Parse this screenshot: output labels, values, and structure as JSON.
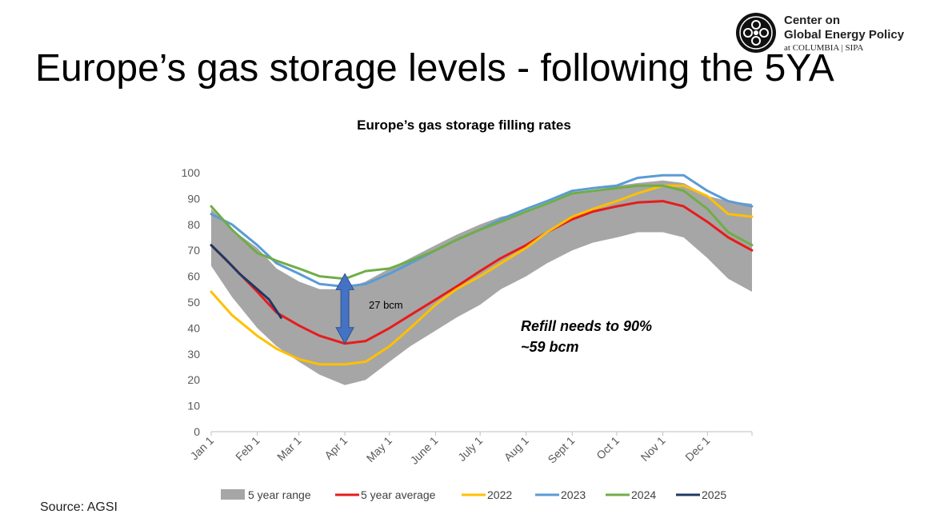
{
  "slide": {
    "title": "Europe’s gas storage levels - following the 5YA",
    "source": "Source: AGSI"
  },
  "logo": {
    "line1": "Center on",
    "line2": "Global Energy Policy",
    "line3": "at COLUMBIA | SIPA"
  },
  "colors": {
    "range": "#a6a6a6",
    "avg": "#e81b1b",
    "y2022": "#ffc000",
    "y2023": "#5b9bd5",
    "y2024": "#70ad47",
    "y2025": "#1f3864",
    "arrow": "#4472c4"
  },
  "chart_data": {
    "type": "area",
    "title": "Europe’s gas storage filling rates",
    "xlabel": "",
    "ylabel": "",
    "x_ticks": [
      "Jan 1",
      "Feb 1",
      "Mar 1",
      "Apr 1",
      "May 1",
      "June 1",
      "July 1",
      "Aug 1",
      "Sept 1",
      "Oct 1",
      "Nov 1",
      "Dec 1"
    ],
    "ylim": [
      0,
      100
    ],
    "yticks": [
      0,
      10,
      20,
      30,
      40,
      50,
      60,
      70,
      80,
      90,
      100
    ],
    "grid": false,
    "legend_position": "bottom",
    "day_of_year": [
      1,
      15,
      32,
      45,
      60,
      74,
      91,
      105,
      121,
      135,
      152,
      166,
      182,
      196,
      213,
      227,
      244,
      258,
      274,
      288,
      305,
      319,
      335,
      349,
      365
    ],
    "range_band": {
      "name": "5 year range",
      "upper": [
        86,
        78,
        71,
        63,
        58,
        55,
        55,
        58,
        63,
        67,
        72,
        76,
        80,
        83,
        85,
        88,
        92,
        93,
        95,
        96,
        97,
        96,
        91,
        89,
        88
      ],
      "lower": [
        64,
        52,
        40,
        33,
        27,
        22,
        18,
        20,
        27,
        33,
        39,
        44,
        49,
        55,
        60,
        65,
        70,
        73,
        75,
        77,
        77,
        75,
        67,
        59,
        54
      ]
    },
    "series": [
      {
        "name": "5 year average",
        "color_key": "avg",
        "values": [
          72,
          64,
          54,
          46,
          41,
          37,
          34,
          35,
          40,
          45,
          51,
          56,
          62,
          67,
          72,
          77,
          82,
          85,
          87,
          88.5,
          89,
          87,
          81,
          75,
          70
        ]
      },
      {
        "name": "2022",
        "color_key": "y2022",
        "values": [
          54,
          45,
          37,
          32,
          28,
          26,
          26,
          27,
          33,
          40,
          49,
          55,
          60,
          65,
          71,
          77,
          83,
          86,
          89,
          92,
          95,
          95,
          91,
          84,
          83
        ]
      },
      {
        "name": "2023",
        "color_key": "y2023",
        "values": [
          84,
          80,
          72,
          65,
          61,
          57,
          56,
          57,
          61,
          65,
          70,
          74,
          78,
          82,
          86,
          89,
          93,
          94,
          95,
          98,
          99,
          99,
          93,
          89,
          87
        ]
      },
      {
        "name": "2024",
        "color_key": "y2024",
        "values": [
          87,
          78,
          69,
          66,
          63,
          60,
          59,
          62,
          63,
          66,
          70,
          74,
          78,
          81,
          85,
          88,
          92,
          93,
          94,
          95,
          95,
          93,
          86,
          77,
          72
        ]
      },
      {
        "name": "2025",
        "color_key": "y2025",
        "day_of_year": [
          1,
          10,
          20,
          32,
          40,
          48
        ],
        "values": [
          72,
          67,
          61,
          55,
          51,
          44
        ]
      }
    ],
    "annotations": {
      "arrow_label": "27 bcm",
      "arrow_day": 91,
      "arrow_from": 34,
      "arrow_to": 61,
      "note_line1": "Refill needs to 90%",
      "note_line2": "~59 bcm"
    }
  }
}
